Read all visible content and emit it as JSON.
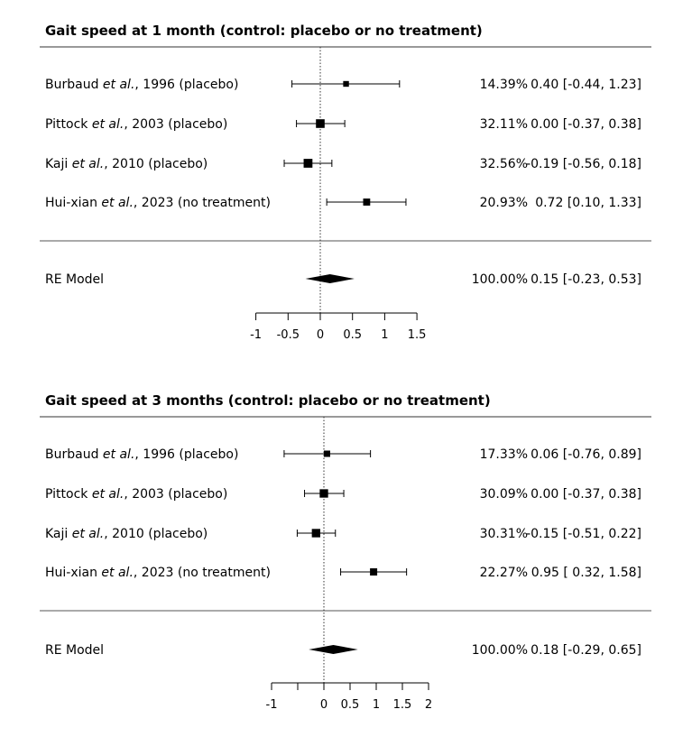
{
  "chart_data": [
    {
      "type": "forest",
      "title": "Gait speed at 1 month (control: placebo or no treatment)",
      "xlim": [
        -1,
        1.5
      ],
      "ticks": [
        -1,
        -0.5,
        0,
        0.5,
        1,
        1.5
      ],
      "tick_labels": [
        "-1",
        "-0.5",
        "0",
        "0.5",
        "1",
        "1.5"
      ],
      "studies": [
        {
          "author": "Burbaud",
          "suffix": ", 1996 (placebo)",
          "weight": "14.39%",
          "ci_text": "0.40 [-0.44, 1.23]",
          "est": 0.4,
          "lo": -0.44,
          "hi": 1.23,
          "box": 0.14
        },
        {
          "author": "Pittock",
          "suffix": ", 2003 (placebo)",
          "weight": "32.11%",
          "ci_text": "0.00 [-0.37, 0.38]",
          "est": 0.0,
          "lo": -0.37,
          "hi": 0.38,
          "box": 0.32
        },
        {
          "author": "Kaji",
          "suffix": ", 2010 (placebo)",
          "weight": "32.56%",
          "ci_text": "-0.19 [-0.56, 0.18]",
          "est": -0.19,
          "lo": -0.56,
          "hi": 0.18,
          "box": 0.33
        },
        {
          "author": "Hui-xian",
          "suffix": ", 2023 (no treatment)",
          "weight": "20.93%",
          "ci_text": "0.72 [0.10, 1.33]",
          "est": 0.72,
          "lo": 0.1,
          "hi": 1.33,
          "box": 0.21
        }
      ],
      "summary": {
        "label": "RE Model",
        "weight": "100.00%",
        "ci_text": "0.15 [-0.23, 0.53]",
        "est": 0.15,
        "lo": -0.23,
        "hi": 0.53
      }
    },
    {
      "type": "forest",
      "title": "Gait speed at 3 months (control: placebo or no treatment)",
      "xlim": [
        -1,
        2
      ],
      "ticks": [
        -1,
        -0.5,
        0,
        0.5,
        1,
        1.5,
        2
      ],
      "tick_labels": [
        "-1",
        "",
        "0",
        "0.5",
        "1",
        "1.5",
        "2"
      ],
      "studies": [
        {
          "author": "Burbaud",
          "suffix": ", 1996 (placebo)",
          "weight": "17.33%",
          "ci_text": "0.06 [-0.76, 0.89]",
          "est": 0.06,
          "lo": -0.76,
          "hi": 0.89,
          "box": 0.17
        },
        {
          "author": "Pittock",
          "suffix": ", 2003 (placebo)",
          "weight": "30.09%",
          "ci_text": "0.00 [-0.37, 0.38]",
          "est": 0.0,
          "lo": -0.37,
          "hi": 0.38,
          "box": 0.3
        },
        {
          "author": "Kaji",
          "suffix": ", 2010 (placebo)",
          "weight": "30.31%",
          "ci_text": "-0.15 [-0.51, 0.22]",
          "est": -0.15,
          "lo": -0.51,
          "hi": 0.22,
          "box": 0.3
        },
        {
          "author": "Hui-xian",
          "suffix": ", 2023 (no treatment)",
          "weight": "22.27%",
          "ci_text": "0.95 [ 0.32, 1.58]",
          "est": 0.95,
          "lo": 0.32,
          "hi": 1.58,
          "box": 0.22
        }
      ],
      "summary": {
        "label": "RE Model",
        "weight": "100.00%",
        "ci_text": "0.18 [-0.29, 0.65]",
        "est": 0.18,
        "lo": -0.29,
        "hi": 0.65
      }
    }
  ],
  "common": {
    "et_al": "et al."
  }
}
